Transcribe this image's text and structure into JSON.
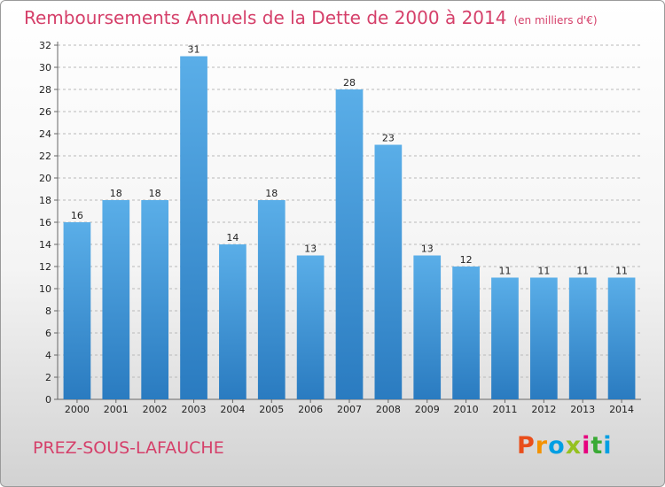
{
  "header": {
    "title": "Remboursements Annuels de la Dette de 2000 à 2014",
    "subtitle": "(en milliers d'€)"
  },
  "footer": {
    "commune": "PREZ-SOUS-LAFAUCHE",
    "logo_text": "Proxiti"
  },
  "colors": {
    "accent": "#d5406a",
    "bar_top": "#5aaee8",
    "bar_bottom": "#2a7bc0"
  },
  "chart_data": {
    "type": "bar",
    "title": "Remboursements Annuels de la Dette de 2000 à 2014",
    "subtitle": "(en milliers d'€)",
    "xlabel": "",
    "ylabel": "",
    "categories": [
      "2000",
      "2001",
      "2002",
      "2003",
      "2004",
      "2005",
      "2006",
      "2007",
      "2008",
      "2009",
      "2010",
      "2011",
      "2012",
      "2013",
      "2014"
    ],
    "values": [
      16,
      18,
      18,
      31,
      14,
      18,
      13,
      28,
      23,
      13,
      12,
      11,
      11,
      11,
      11
    ],
    "ylim": [
      0,
      32
    ],
    "yticks": [
      0,
      2,
      4,
      6,
      8,
      10,
      12,
      14,
      16,
      18,
      20,
      22,
      24,
      26,
      28,
      30,
      32
    ],
    "grid": true,
    "legend": "none"
  }
}
